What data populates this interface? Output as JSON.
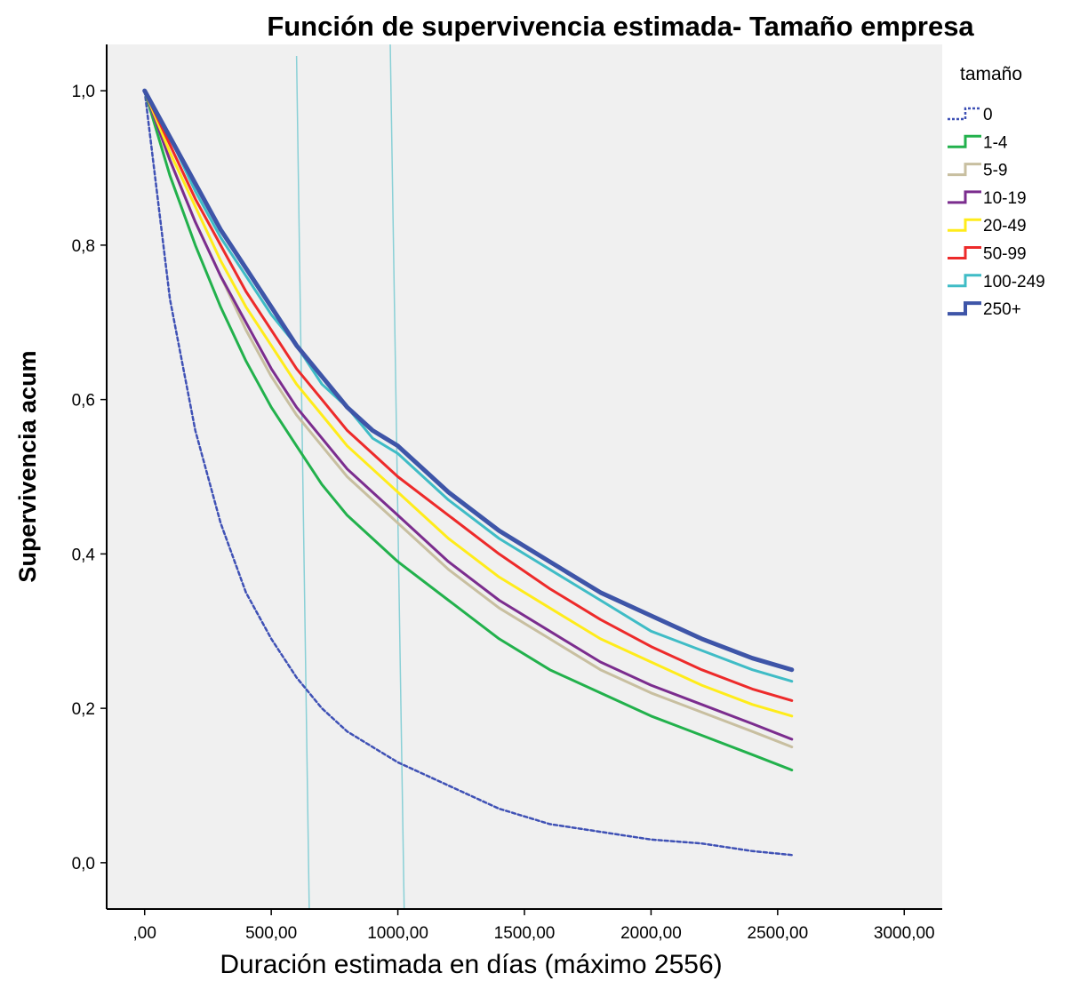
{
  "chart_data": {
    "type": "line",
    "title": "Función de supervivencia estimada- Tamaño empresa",
    "xlabel": "Duración  estimada en días (máximo 2556)",
    "ylabel": "Supervivencia acum",
    "xlim": [
      -150,
      3150
    ],
    "ylim": [
      -0.06,
      1.06
    ],
    "x_ticks": [
      {
        "value": 0,
        "label": ",00"
      },
      {
        "value": 500,
        "label": "500,00"
      },
      {
        "value": 1000,
        "label": "1000,00"
      },
      {
        "value": 1500,
        "label": "1500,00"
      },
      {
        "value": 2000,
        "label": "2000,00"
      },
      {
        "value": 2500,
        "label": "2500,00"
      },
      {
        "value": 3000,
        "label": "3000,00"
      }
    ],
    "y_ticks": [
      {
        "value": 0.0,
        "label": "0,0"
      },
      {
        "value": 0.2,
        "label": "0,2"
      },
      {
        "value": 0.4,
        "label": "0,4"
      },
      {
        "value": 0.6,
        "label": "0,6"
      },
      {
        "value": 0.8,
        "label": "0,8"
      },
      {
        "value": 1.0,
        "label": "1,0"
      }
    ],
    "grid": false,
    "legend_title": "tamaño",
    "legend_position": "right",
    "x": [
      0,
      100,
      200,
      300,
      400,
      500,
      600,
      700,
      800,
      900,
      1000,
      1200,
      1400,
      1600,
      1800,
      2000,
      2200,
      2400,
      2556
    ],
    "series": [
      {
        "name": "0",
        "color": "#3f51b5",
        "dashed": true,
        "width": 2.5,
        "values": [
          1.0,
          0.73,
          0.56,
          0.44,
          0.35,
          0.29,
          0.24,
          0.2,
          0.17,
          0.15,
          0.13,
          0.1,
          0.07,
          0.05,
          0.04,
          0.03,
          0.025,
          0.015,
          0.01
        ]
      },
      {
        "name": "1-4",
        "color": "#22b14c",
        "dashed": false,
        "width": 3,
        "values": [
          1.0,
          0.89,
          0.8,
          0.72,
          0.65,
          0.59,
          0.54,
          0.49,
          0.45,
          0.42,
          0.39,
          0.34,
          0.29,
          0.25,
          0.22,
          0.19,
          0.165,
          0.14,
          0.12
        ]
      },
      {
        "name": "5-9",
        "color": "#c8bfa0",
        "dashed": false,
        "width": 3,
        "values": [
          1.0,
          0.91,
          0.83,
          0.76,
          0.69,
          0.63,
          0.58,
          0.54,
          0.5,
          0.47,
          0.44,
          0.38,
          0.33,
          0.29,
          0.25,
          0.22,
          0.195,
          0.17,
          0.15
        ]
      },
      {
        "name": "10-19",
        "color": "#7b2d8e",
        "dashed": false,
        "width": 3,
        "values": [
          1.0,
          0.91,
          0.83,
          0.76,
          0.7,
          0.64,
          0.59,
          0.55,
          0.51,
          0.48,
          0.45,
          0.39,
          0.34,
          0.3,
          0.26,
          0.23,
          0.205,
          0.18,
          0.16
        ]
      },
      {
        "name": "20-49",
        "color": "#ffec1a",
        "dashed": false,
        "width": 3,
        "values": [
          1.0,
          0.92,
          0.85,
          0.78,
          0.72,
          0.67,
          0.62,
          0.58,
          0.54,
          0.51,
          0.48,
          0.42,
          0.37,
          0.33,
          0.29,
          0.26,
          0.23,
          0.205,
          0.19
        ]
      },
      {
        "name": "50-99",
        "color": "#ed2a2a",
        "dashed": false,
        "width": 3,
        "values": [
          1.0,
          0.93,
          0.86,
          0.8,
          0.74,
          0.69,
          0.64,
          0.6,
          0.56,
          0.53,
          0.5,
          0.45,
          0.4,
          0.355,
          0.315,
          0.28,
          0.25,
          0.225,
          0.21
        ]
      },
      {
        "name": "100-249",
        "color": "#3fbcc6",
        "dashed": false,
        "width": 3,
        "values": [
          1.0,
          0.94,
          0.87,
          0.81,
          0.76,
          0.71,
          0.67,
          0.62,
          0.59,
          0.55,
          0.53,
          0.47,
          0.42,
          0.38,
          0.34,
          0.3,
          0.275,
          0.25,
          0.235
        ]
      },
      {
        "name": "250+",
        "color": "#3e55a8",
        "dashed": false,
        "width": 5,
        "values": [
          1.0,
          0.94,
          0.88,
          0.82,
          0.77,
          0.72,
          0.67,
          0.63,
          0.59,
          0.56,
          0.54,
          0.48,
          0.43,
          0.39,
          0.35,
          0.32,
          0.29,
          0.265,
          0.25
        ]
      }
    ],
    "reference_lines": [
      {
        "color": "#89d0d6",
        "x_top": 600,
        "y_top": 1.045,
        "x_bottom": 650,
        "y_bottom": -0.06
      },
      {
        "color": "#89d0d6",
        "x_top": 970,
        "y_top": 1.06,
        "x_bottom": 1025,
        "y_bottom": -0.06
      }
    ],
    "plot_background": "#f0f0f0"
  }
}
